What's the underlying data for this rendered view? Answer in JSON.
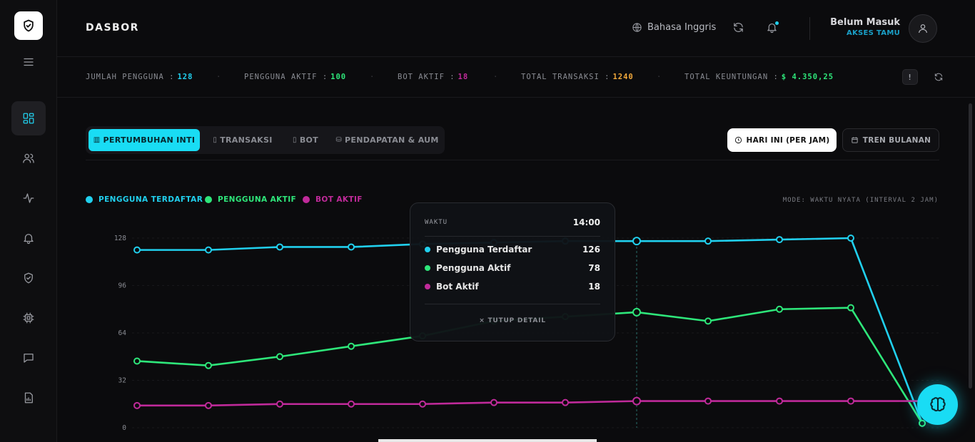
{
  "header": {
    "title": "DASBOR",
    "language": "Bahasa Inggris",
    "user_name": "Belum Masuk",
    "user_role": "AKSES TAMU"
  },
  "stats": {
    "total_users_label": "JUMLAH PENGGUNA :",
    "total_users_value": "128",
    "active_users_label": "PENGGUNA AKTIF :",
    "active_users_value": "100",
    "active_bots_label": "BOT AKTIF :",
    "active_bots_value": "18",
    "total_tx_label": "TOTAL TRANSAKSI :",
    "total_tx_value": "1240",
    "total_profit_label": "TOTAL KEUNTUNGAN :",
    "total_profit_value": "$ 4.350,25",
    "info_label": "!",
    "separator": "·",
    "colors": {
      "users": "#21d0ee",
      "active": "#2ee67a",
      "bots": "#c02a9a",
      "tx": "#f2a93b",
      "profit": "#2ee67a"
    }
  },
  "tabs": [
    {
      "label": "PERTUMBUHAN INTI",
      "icon": "bar-chart-icon",
      "glyph": "▥"
    },
    {
      "label": "TRANSAKSI",
      "icon": "tx-icon",
      "glyph": "▯"
    },
    {
      "label": "BOT",
      "icon": "bot-icon",
      "glyph": "▯"
    },
    {
      "label": "PENDAPATAN & AUM",
      "icon": "money-icon",
      "glyph": "⛁"
    }
  ],
  "periods": {
    "today": "HARI INI (PER JAM)",
    "monthly": "TREN BULANAN"
  },
  "legend": {
    "registered": "PENGGUNA TERDAFTAR",
    "active": "PENGGUNA AKTIF",
    "bots": "BOT AKTIF"
  },
  "mode_text": "MODE: WAKTU NYATA (INTERVAL 2 JAM)",
  "tooltip": {
    "head": "WAKTU",
    "time": "14:00",
    "rows": [
      {
        "label": "Pengguna Terdaftar",
        "value": "126"
      },
      {
        "label": "Pengguna Aktif",
        "value": "78"
      },
      {
        "label": "Bot Aktif",
        "value": "18"
      }
    ],
    "close": "× TUTUP DETAIL"
  },
  "chart_data": {
    "type": "line",
    "x": [
      0,
      1,
      2,
      3,
      4,
      5,
      6,
      7,
      8,
      9,
      10,
      11
    ],
    "yticks": [
      "0",
      "32",
      "64",
      "96",
      "128"
    ],
    "ylim": [
      0,
      128
    ],
    "highlight_index": 7,
    "series": [
      {
        "name": "PENGGUNA TERDAFTAR",
        "color": "#21d0ee",
        "values": [
          120,
          120,
          122,
          122,
          124,
          125,
          126,
          126,
          126,
          127,
          128,
          3
        ]
      },
      {
        "name": "PENGGUNA AKTIF",
        "color": "#2ee67a",
        "values": [
          45,
          42,
          48,
          55,
          62,
          72,
          75,
          78,
          72,
          80,
          81,
          3
        ]
      },
      {
        "name": "BOT AKTIF",
        "color": "#c02a9a",
        "values": [
          15,
          15,
          16,
          16,
          16,
          17,
          17,
          18,
          18,
          18,
          18,
          18
        ]
      }
    ]
  }
}
